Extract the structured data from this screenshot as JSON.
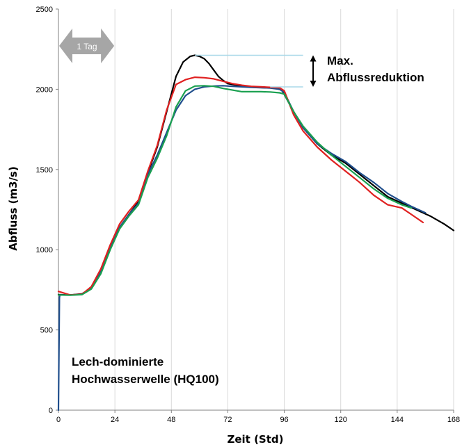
{
  "chart_data": {
    "type": "line",
    "xlabel": "Zeit (Std)",
    "ylabel": "Abfluss (m3/s)",
    "xlim": [
      0,
      168
    ],
    "ylim": [
      0,
      2500
    ],
    "xticks": [
      0,
      24,
      48,
      72,
      96,
      120,
      144,
      168
    ],
    "yticks": [
      0,
      500,
      1000,
      1500,
      2000,
      2500
    ],
    "grid": "vertical",
    "series": [
      {
        "color": "#000000",
        "x": [
          0,
          5,
          10,
          14,
          18,
          22,
          26,
          30,
          34,
          38,
          42,
          46,
          50,
          53,
          56,
          58,
          60,
          62,
          64,
          66,
          68,
          70,
          72,
          74,
          76,
          78,
          80,
          84,
          88,
          92,
          95,
          100,
          104,
          110,
          116,
          122,
          128,
          134,
          140,
          146,
          152,
          158,
          164,
          168
        ],
        "y": [
          720,
          718,
          725,
          760,
          860,
          1010,
          1140,
          1220,
          1300,
          1480,
          1640,
          1860,
          2080,
          2170,
          2205,
          2212,
          2205,
          2190,
          2160,
          2120,
          2080,
          2055,
          2035,
          2030,
          2025,
          2020,
          2015,
          2012,
          2010,
          2008,
          1995,
          1860,
          1760,
          1660,
          1590,
          1540,
          1470,
          1400,
          1330,
          1290,
          1250,
          1210,
          1160,
          1120
        ]
      },
      {
        "color": "#1f4e8c",
        "x": [
          0,
          0.4,
          0.6,
          5,
          10,
          14,
          18,
          22,
          26,
          30,
          34,
          38,
          42,
          46,
          50,
          54,
          58,
          62,
          66,
          70,
          74,
          78,
          82,
          86,
          90,
          94,
          96,
          100,
          104,
          110,
          116,
          122,
          128,
          134,
          140,
          146,
          150,
          156
        ],
        "y": [
          0,
          700,
          718,
          718,
          722,
          760,
          860,
          1010,
          1140,
          1220,
          1290,
          1470,
          1590,
          1730,
          1870,
          1960,
          2000,
          2015,
          2020,
          2022,
          2018,
          2015,
          2012,
          2010,
          2008,
          2000,
          1980,
          1860,
          1760,
          1660,
          1600,
          1550,
          1480,
          1420,
          1350,
          1300,
          1270,
          1230
        ]
      },
      {
        "color": "#e02020",
        "x": [
          0,
          5,
          10,
          14,
          18,
          22,
          26,
          30,
          34,
          38,
          42,
          46,
          50,
          54,
          58,
          62,
          66,
          70,
          74,
          78,
          82,
          86,
          90,
          94,
          96,
          100,
          104,
          110,
          116,
          122,
          128,
          134,
          140,
          146,
          150,
          155
        ],
        "y": [
          740,
          718,
          722,
          770,
          880,
          1030,
          1160,
          1240,
          1310,
          1490,
          1650,
          1870,
          2030,
          2060,
          2075,
          2072,
          2065,
          2050,
          2035,
          2025,
          2018,
          2015,
          2012,
          2010,
          1990,
          1840,
          1740,
          1640,
          1560,
          1490,
          1420,
          1340,
          1280,
          1260,
          1220,
          1170
        ]
      },
      {
        "color": "#1aa050",
        "x": [
          0,
          5,
          10,
          14,
          18,
          22,
          26,
          30,
          34,
          38,
          42,
          46,
          50,
          54,
          58,
          62,
          66,
          70,
          74,
          78,
          82,
          86,
          90,
          94,
          96,
          100,
          104,
          110,
          116,
          122,
          128,
          134,
          140,
          146,
          150
        ],
        "y": [
          718,
          716,
          720,
          755,
          850,
          1000,
          1130,
          1210,
          1280,
          1450,
          1570,
          1710,
          1890,
          1990,
          2020,
          2022,
          2018,
          2005,
          1995,
          1985,
          1985,
          1985,
          1983,
          1978,
          1970,
          1860,
          1770,
          1670,
          1590,
          1520,
          1450,
          1380,
          1320,
          1280,
          1260
        ]
      }
    ],
    "annotations": {
      "arrow_label": "1 Tag",
      "reduction_label_line1": "Max.",
      "reduction_label_line2": "Abflussreduktion",
      "reduction_upper": 2212,
      "reduction_lower": 2015,
      "reduction_x_start": 58,
      "reduction_x_end": 104,
      "wave_label_line1": "Lech-dominierte",
      "wave_label_line2": "Hochwasserwelle (HQ100)"
    },
    "colors": {
      "grid": "#d9d9d9",
      "axis": "#808080",
      "reduction_lines": "#a8d8e8",
      "day_arrow": "#a6a6a6"
    }
  }
}
